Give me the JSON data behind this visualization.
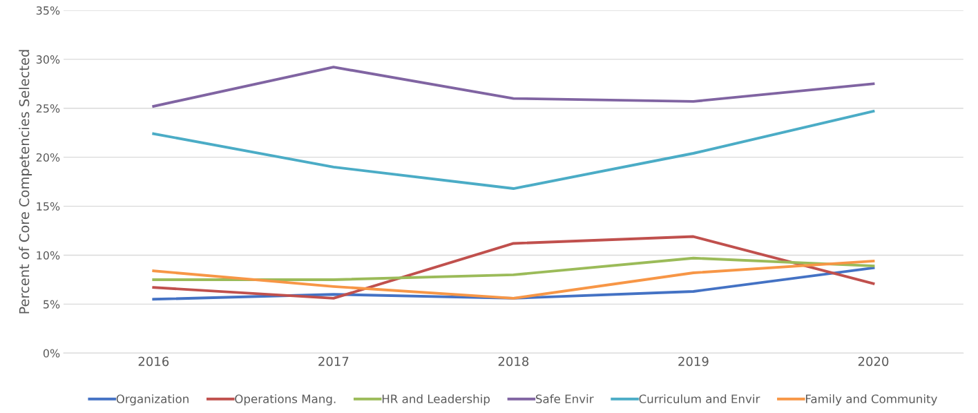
{
  "chart_data": {
    "type": "line",
    "ylabel": "Percent of Core Competencies Selected",
    "categories": [
      "2016",
      "2017",
      "2018",
      "2019",
      "2020"
    ],
    "series": [
      {
        "name": "Organization",
        "color": "#4472c4",
        "values": [
          5.5,
          6.0,
          5.6,
          6.3,
          8.7
        ]
      },
      {
        "name": "Operations Mang.",
        "color": "#c0504d",
        "values": [
          6.7,
          5.6,
          11.2,
          11.9,
          7.1
        ]
      },
      {
        "name": "HR and Leadership",
        "color": "#9bbb59",
        "values": [
          7.5,
          7.5,
          8.0,
          9.7,
          8.9
        ]
      },
      {
        "name": "Safe Envir",
        "color": "#8064a2",
        "values": [
          25.2,
          29.2,
          26.0,
          25.7,
          27.5
        ]
      },
      {
        "name": "Curriculum and Envir",
        "color": "#4bacc6",
        "values": [
          22.4,
          19.0,
          16.8,
          20.4,
          24.7
        ]
      },
      {
        "name": "Family and Community",
        "color": "#f79646",
        "values": [
          8.4,
          6.8,
          5.6,
          8.2,
          9.4
        ]
      }
    ],
    "ylim": [
      0,
      35
    ],
    "yticks": [
      {
        "value": 0,
        "label": "0%"
      },
      {
        "value": 5,
        "label": "5%"
      },
      {
        "value": 10,
        "label": "10%"
      },
      {
        "value": 15,
        "label": "15%"
      },
      {
        "value": 20,
        "label": "20%"
      },
      {
        "value": 25,
        "label": "25%"
      },
      {
        "value": 30,
        "label": "30%"
      },
      {
        "value": 35,
        "label": "35%"
      }
    ],
    "grid": "y",
    "legend": "bottom",
    "marker": "none",
    "line_style": "solid"
  }
}
